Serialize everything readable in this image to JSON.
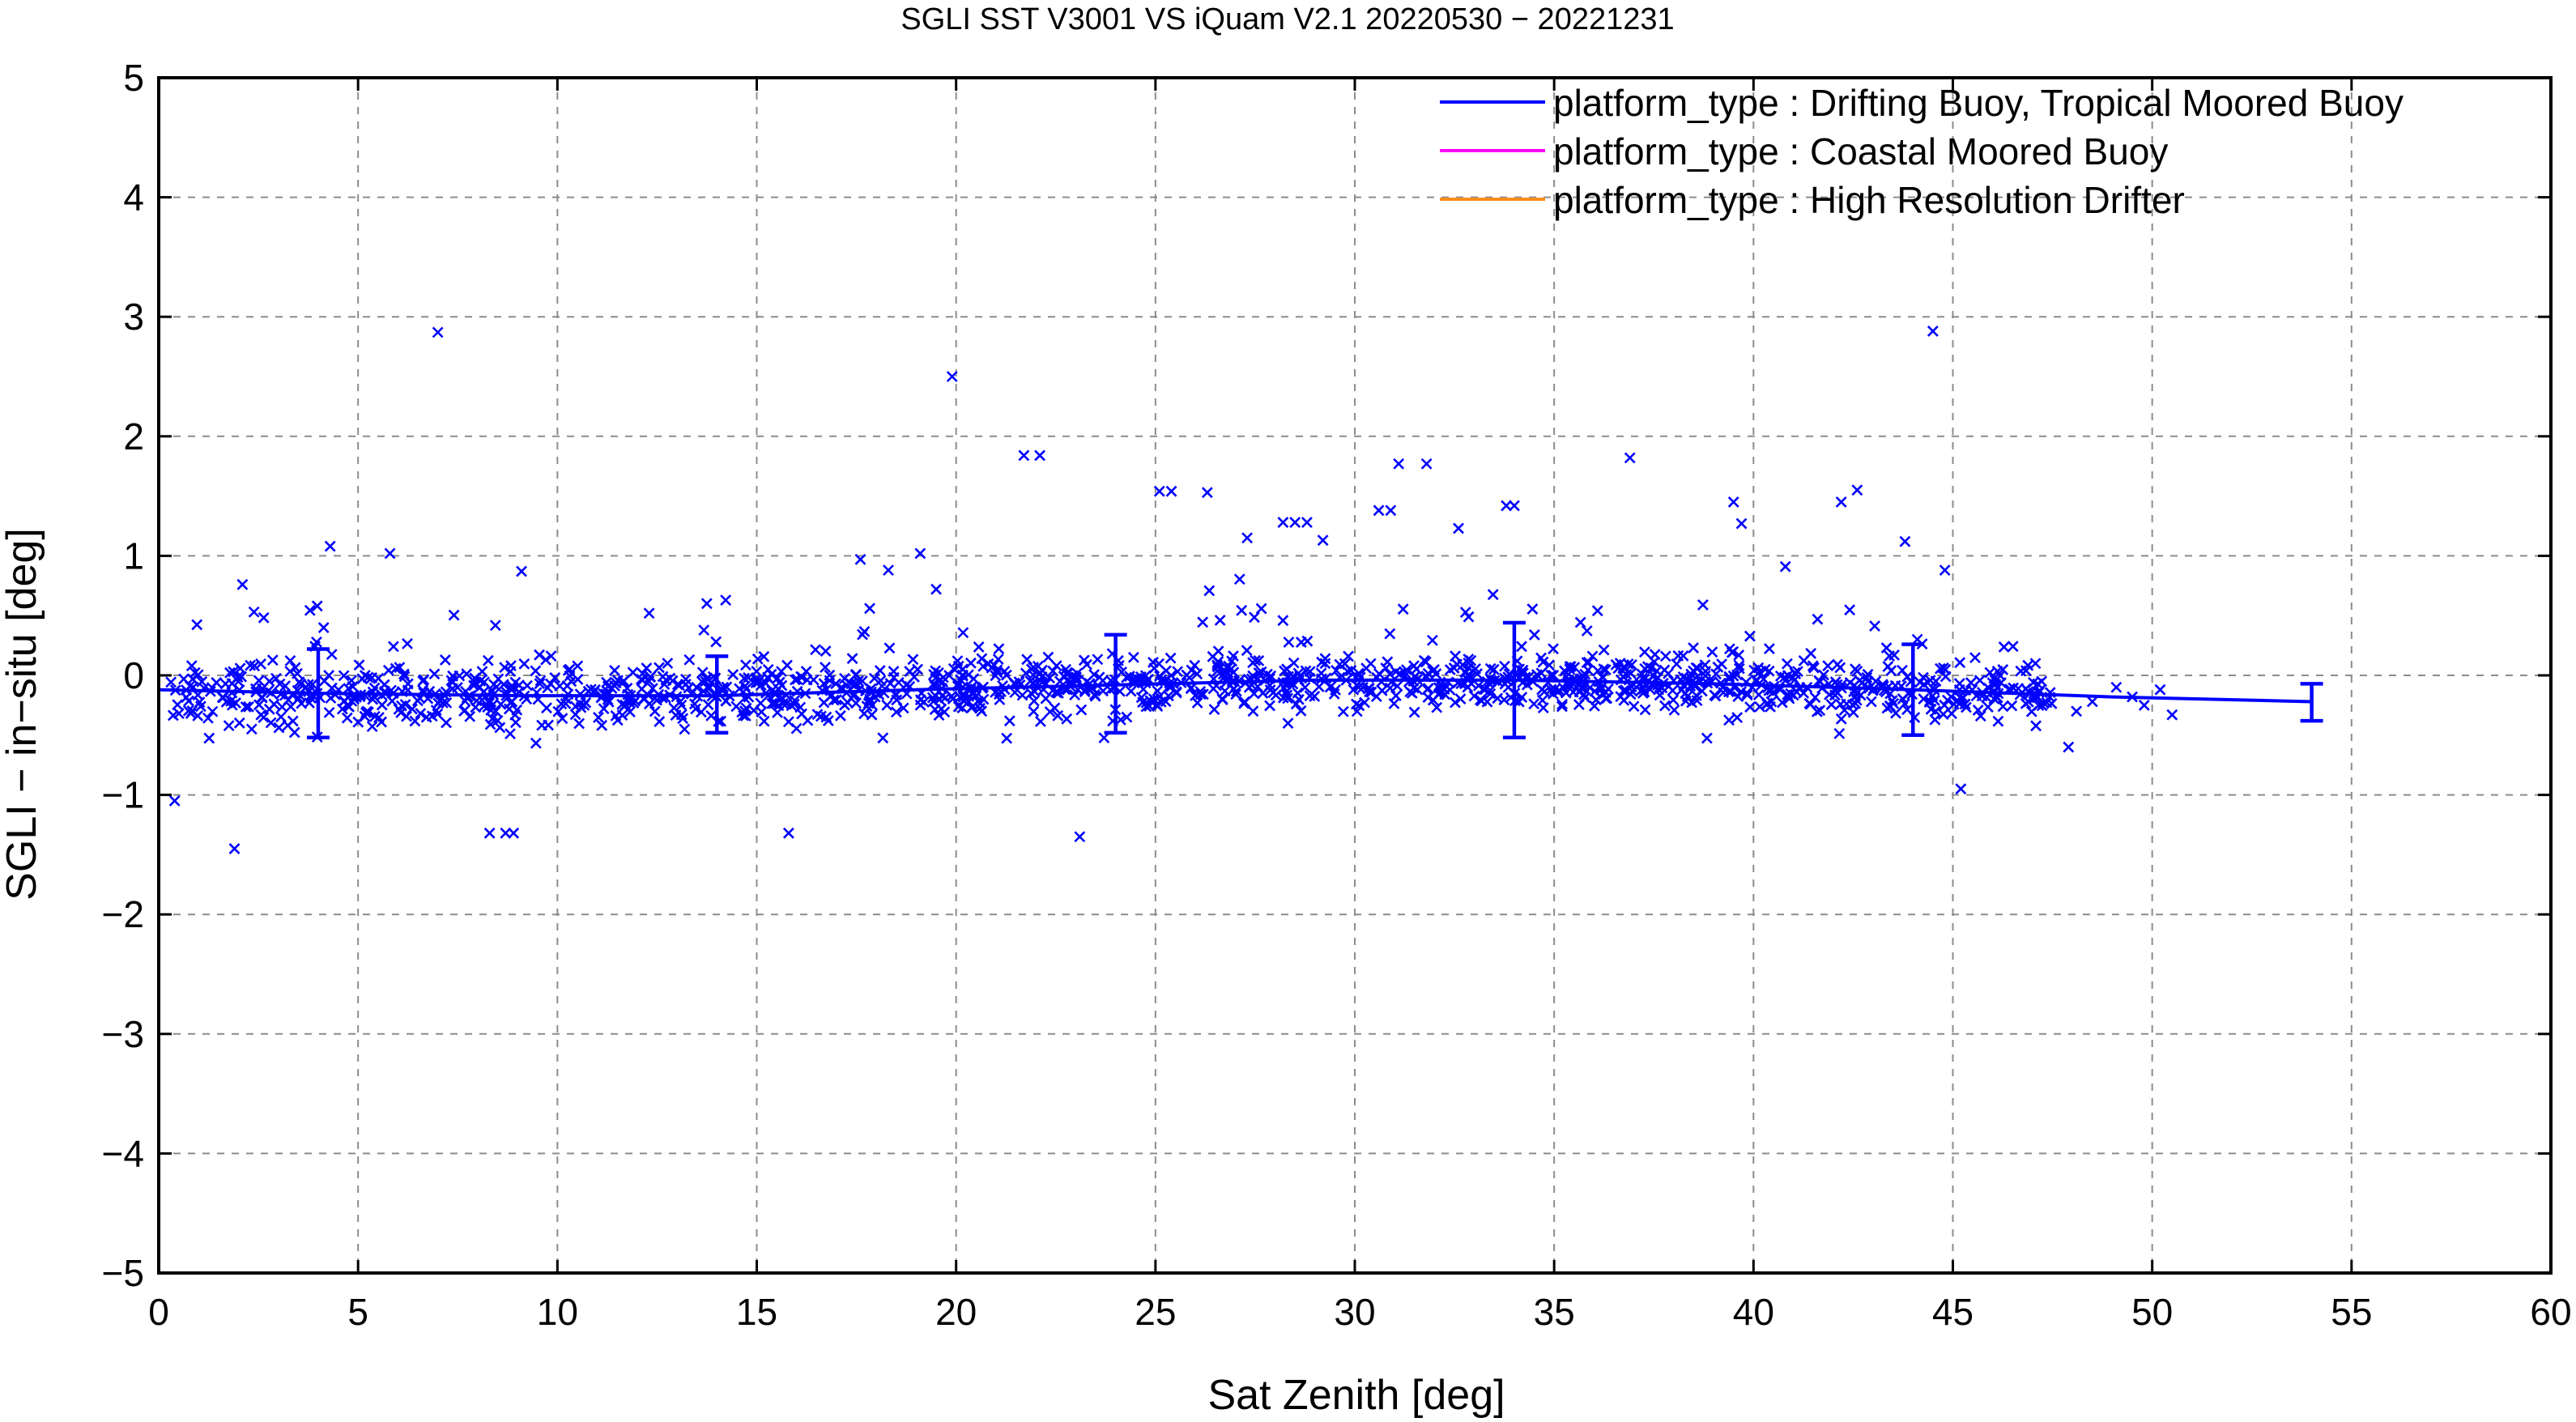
{
  "chart_data": {
    "type": "scatter",
    "title": "SGLI SST V3001 VS iQuam V2.1 20220530 − 20221231",
    "xlabel": "Sat Zenith [deg]",
    "ylabel": "SGLI − in−situ [deg]",
    "xlim": [
      0,
      60
    ],
    "ylim": [
      -5,
      5
    ],
    "x_ticks": [
      0,
      5,
      10,
      15,
      20,
      25,
      30,
      35,
      40,
      45,
      50,
      55,
      60
    ],
    "y_ticks": [
      -5,
      -4,
      -3,
      -2,
      -1,
      0,
      1,
      2,
      3,
      4,
      5
    ],
    "x_tick_labels": [
      "0",
      "5",
      "10",
      "15",
      "20",
      "25",
      "30",
      "35",
      "40",
      "45",
      "50",
      "55",
      "60"
    ],
    "y_tick_labels": [
      "−5",
      "−4",
      "−3",
      "−2",
      "−1",
      "0",
      "1",
      "2",
      "3",
      "4",
      "5"
    ],
    "grid": true,
    "legend_position": "top-right",
    "legend": [
      {
        "name": "platform_type : Drifting Buoy, Tropical Moored Buoy",
        "color": "#0000ff"
      },
      {
        "name": "platform_type : Coastal Moored Buoy",
        "color": "#ff00ff"
      },
      {
        "name": "platform_type : High Resolution Drifter",
        "color": "#ff8c1a"
      }
    ],
    "series": [
      {
        "name": "platform_type : Drifting Buoy, Tropical Moored Buoy",
        "color": "#0000ff",
        "mean_line": {
          "x": [
            0,
            4,
            9,
            14,
            19,
            24,
            29,
            34,
            39,
            44,
            49,
            54
          ],
          "y": [
            -0.12,
            -0.15,
            -0.17,
            -0.17,
            -0.12,
            -0.08,
            -0.04,
            -0.04,
            -0.07,
            -0.12,
            -0.18,
            -0.22
          ]
        },
        "error_bars": [
          {
            "x": 4,
            "y": -0.15,
            "low": -0.52,
            "high": 0.22
          },
          {
            "x": 14,
            "y": -0.17,
            "low": -0.48,
            "high": 0.16
          },
          {
            "x": 24,
            "y": -0.08,
            "low": -0.48,
            "high": 0.34
          },
          {
            "x": 34,
            "y": -0.04,
            "low": -0.52,
            "high": 0.44
          },
          {
            "x": 44,
            "y": -0.12,
            "low": -0.5,
            "high": 0.26
          },
          {
            "x": 54,
            "y": -0.22,
            "low": -0.38,
            "high": -0.07
          }
        ],
        "outliers": [
          {
            "x": 0.4,
            "y": -1.05
          },
          {
            "x": 1.9,
            "y": -1.45
          },
          {
            "x": 2.1,
            "y": 0.76
          },
          {
            "x": 4.3,
            "y": 1.08
          },
          {
            "x": 5.8,
            "y": 1.02
          },
          {
            "x": 7.0,
            "y": 2.87
          },
          {
            "x": 8.3,
            "y": -1.32
          },
          {
            "x": 8.7,
            "y": -1.32
          },
          {
            "x": 8.9,
            "y": -1.32
          },
          {
            "x": 9.1,
            "y": 0.87
          },
          {
            "x": 12.3,
            "y": 0.52
          },
          {
            "x": 15.8,
            "y": -1.32
          },
          {
            "x": 17.6,
            "y": 0.97
          },
          {
            "x": 18.3,
            "y": 0.88
          },
          {
            "x": 19.1,
            "y": 1.02
          },
          {
            "x": 19.5,
            "y": 0.72
          },
          {
            "x": 19.9,
            "y": 2.5
          },
          {
            "x": 21.7,
            "y": 1.84
          },
          {
            "x": 22.1,
            "y": 1.84
          },
          {
            "x": 23.1,
            "y": -1.35
          },
          {
            "x": 25.1,
            "y": 1.54
          },
          {
            "x": 25.4,
            "y": 1.54
          },
          {
            "x": 26.3,
            "y": 1.53
          },
          {
            "x": 27.3,
            "y": 1.15
          },
          {
            "x": 28.2,
            "y": 1.28
          },
          {
            "x": 28.5,
            "y": 1.28
          },
          {
            "x": 28.8,
            "y": 1.28
          },
          {
            "x": 29.2,
            "y": 1.13
          },
          {
            "x": 30.6,
            "y": 1.38
          },
          {
            "x": 30.9,
            "y": 1.38
          },
          {
            "x": 31.1,
            "y": 1.77
          },
          {
            "x": 31.8,
            "y": 1.77
          },
          {
            "x": 32.6,
            "y": 1.23
          },
          {
            "x": 33.8,
            "y": 1.42
          },
          {
            "x": 34.0,
            "y": 1.42
          },
          {
            "x": 36.9,
            "y": 1.82
          },
          {
            "x": 39.5,
            "y": 1.45
          },
          {
            "x": 39.7,
            "y": 1.27
          },
          {
            "x": 40.8,
            "y": 0.91
          },
          {
            "x": 42.2,
            "y": 1.45
          },
          {
            "x": 42.6,
            "y": 1.55
          },
          {
            "x": 43.8,
            "y": 1.12
          },
          {
            "x": 44.5,
            "y": 2.88
          },
          {
            "x": 44.8,
            "y": 0.88
          },
          {
            "x": 45.2,
            "y": -0.95
          }
        ]
      },
      {
        "name": "platform_type : Coastal Moored Buoy",
        "color": "#ff00ff"
      },
      {
        "name": "platform_type : High Resolution Drifter",
        "color": "#ff8c1a"
      }
    ]
  }
}
